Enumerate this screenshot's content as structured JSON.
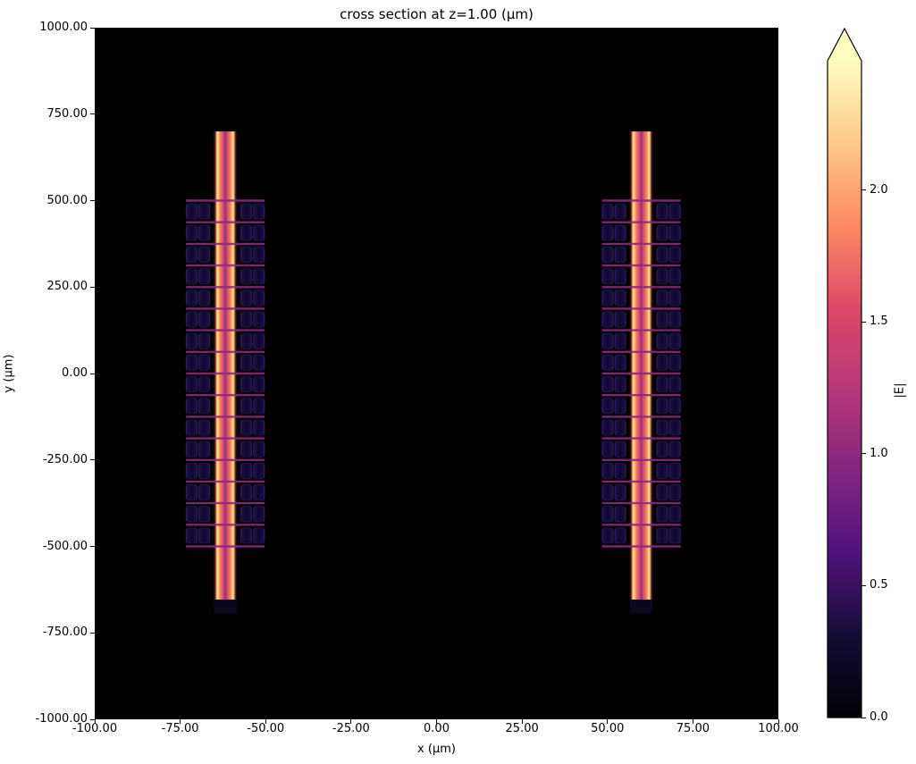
{
  "chart_data": {
    "type": "heatmap",
    "title": "cross section at z=1.00 (μm)",
    "xlabel": "x (μm)",
    "ylabel": "y (μm)",
    "xlim": [
      -100,
      100
    ],
    "ylim": [
      -1000,
      1000
    ],
    "grid": false,
    "background_value": 0.0,
    "x_ticks": {
      "values": [
        -100,
        -75,
        -50,
        -25,
        0,
        25,
        50,
        75,
        100
      ],
      "labels": [
        "-100.00",
        "-75.00",
        "-50.00",
        "-25.00",
        "0.00",
        "25.00",
        "50.00",
        "75.00",
        "100.00"
      ]
    },
    "y_ticks": {
      "values": [
        1000,
        750,
        500,
        250,
        0,
        -250,
        -500,
        -750,
        -1000
      ],
      "labels": [
        "1000.00",
        "750.00",
        "500.00",
        "250.00",
        "0.00",
        "-250.00",
        "-500.00",
        "-750.00",
        "-1000.00"
      ]
    },
    "colorbar": {
      "label": "|E|",
      "colormap": "magma",
      "vmin": 0.0,
      "vmax": 2.49,
      "extend": "max",
      "ticks": [
        0.0,
        0.5,
        1.0,
        1.5,
        2.0
      ],
      "tick_labels": [
        "0.0",
        "0.5",
        "1.0",
        "1.5",
        "2.0"
      ]
    },
    "structures": [
      {
        "name": "left waveguide with grating array",
        "center_x_um": -61.8
      },
      {
        "name": "right waveguide with grating array",
        "center_x_um": 59.9
      }
    ],
    "structure_geometry": {
      "stripe": {
        "half_width_um": 3.5,
        "y_top_um": 700,
        "y_bottom_um": -654,
        "edge_field": 2.3,
        "core_field": 1.2
      },
      "grating": {
        "y_top_um": 500,
        "y_bottom_um": -500,
        "n_periods": 16,
        "period_um": 62.5,
        "column_offsets_um": [
          [
            -11.5,
            -8.2
          ],
          [
            -7.8,
            -4.5
          ],
          [
            4.5,
            7.8
          ],
          [
            8.2,
            11.5
          ]
        ],
        "block_field": 0.35,
        "line_field": 1.0
      },
      "end_pad": {
        "y_top_um": -654,
        "y_bottom_um": -694,
        "half_width_um": 3.3,
        "field": 0.1
      }
    },
    "colors": {
      "plot_background": "#000000",
      "grating_line": "#8c2981",
      "end_pad": "#0a071e",
      "block_stroke": "#3a2070",
      "stripe_gradient": [
        [
          0,
          "#08020d"
        ],
        [
          7,
          "#4a161c"
        ],
        [
          13,
          "#e89a55"
        ],
        [
          17,
          "#fbeaa8"
        ],
        [
          23,
          "#fbb369"
        ],
        [
          30,
          "#f8795c"
        ],
        [
          38,
          "#e15a66"
        ],
        [
          46,
          "#b43c7a"
        ],
        [
          50,
          "#9a2d82"
        ],
        [
          54,
          "#b43c7a"
        ],
        [
          62,
          "#e15a66"
        ],
        [
          70,
          "#f8795c"
        ],
        [
          77,
          "#fbb369"
        ],
        [
          83,
          "#fbeaa8"
        ],
        [
          87,
          "#e89a55"
        ],
        [
          93,
          "#4a161c"
        ],
        [
          100,
          "#08020d"
        ]
      ],
      "block_gradient": [
        [
          0,
          "#33206b"
        ],
        [
          10,
          "#1c0f45"
        ],
        [
          50,
          "#100830"
        ],
        [
          90,
          "#1c0f45"
        ],
        [
          100,
          "#33206b"
        ]
      ],
      "magma_stops": [
        [
          0,
          "#000004"
        ],
        [
          0.125,
          "#140e36"
        ],
        [
          0.25,
          "#51127c"
        ],
        [
          0.375,
          "#832681"
        ],
        [
          0.5,
          "#b73779"
        ],
        [
          0.625,
          "#de4968"
        ],
        [
          0.75,
          "#fc8961"
        ],
        [
          0.875,
          "#fdc98a"
        ],
        [
          1,
          "#fcfdbf"
        ]
      ]
    }
  }
}
